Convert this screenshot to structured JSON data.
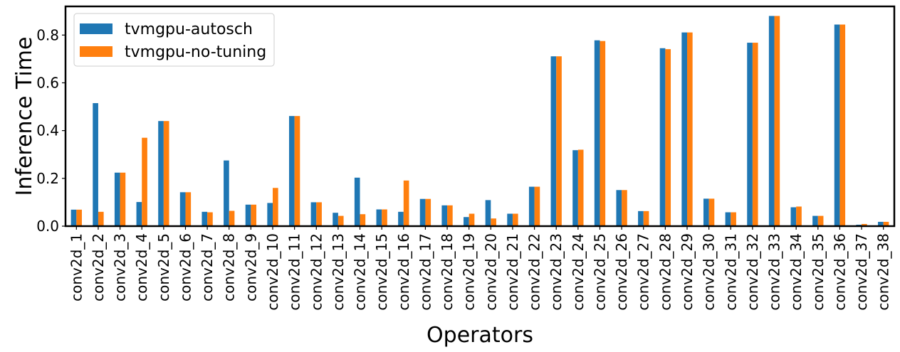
{
  "chart_data": {
    "type": "bar",
    "title": "",
    "xlabel": "Operators",
    "ylabel": "Inference Time",
    "ylim": [
      0,
      0.92
    ],
    "yticks": [
      0.0,
      0.2,
      0.4,
      0.6,
      0.8
    ],
    "ytick_labels": [
      "0.0",
      "0.2",
      "0.4",
      "0.6",
      "0.8"
    ],
    "grid": false,
    "legend_position": "top-left",
    "categories": [
      "conv2d_1",
      "conv2d_2",
      "conv2d_3",
      "conv2d_4",
      "conv2d_5",
      "conv2d_6",
      "conv2d_7",
      "conv2d_8",
      "conv2d_9",
      "conv2d_10",
      "conv2d_11",
      "conv2d_12",
      "conv2d_13",
      "conv2d_14",
      "conv2d_15",
      "conv2d_16",
      "conv2d_17",
      "conv2d_18",
      "conv2d_19",
      "conv2d_20",
      "conv2d_21",
      "conv2d_22",
      "conv2d_23",
      "conv2d_24",
      "conv2d_25",
      "conv2d_26",
      "conv2d_27",
      "conv2d_28",
      "conv2d_29",
      "conv2d_30",
      "conv2d_31",
      "conv2d_32",
      "conv2d_33",
      "conv2d_34",
      "conv2d_35",
      "conv2d_36",
      "conv2d_37",
      "conv2d_38"
    ],
    "series": [
      {
        "name": "tvmgpu-autosch",
        "color": "#1f77b4",
        "values": [
          0.069,
          0.515,
          0.224,
          0.101,
          0.44,
          0.142,
          0.06,
          0.275,
          0.09,
          0.097,
          0.461,
          0.1,
          0.056,
          0.203,
          0.07,
          0.06,
          0.114,
          0.087,
          0.038,
          0.109,
          0.052,
          0.165,
          0.711,
          0.318,
          0.778,
          0.151,
          0.063,
          0.745,
          0.811,
          0.115,
          0.058,
          0.768,
          0.88,
          0.079,
          0.043,
          0.844,
          0.006,
          0.018
        ]
      },
      {
        "name": "tvmgpu-no-tuning",
        "color": "#ff7f0e",
        "values": [
          0.069,
          0.06,
          0.224,
          0.37,
          0.44,
          0.142,
          0.058,
          0.064,
          0.09,
          0.16,
          0.461,
          0.1,
          0.043,
          0.05,
          0.07,
          0.191,
          0.114,
          0.087,
          0.052,
          0.032,
          0.052,
          0.165,
          0.711,
          0.32,
          0.775,
          0.151,
          0.063,
          0.741,
          0.811,
          0.115,
          0.058,
          0.768,
          0.88,
          0.082,
          0.043,
          0.844,
          0.009,
          0.018
        ]
      }
    ]
  }
}
